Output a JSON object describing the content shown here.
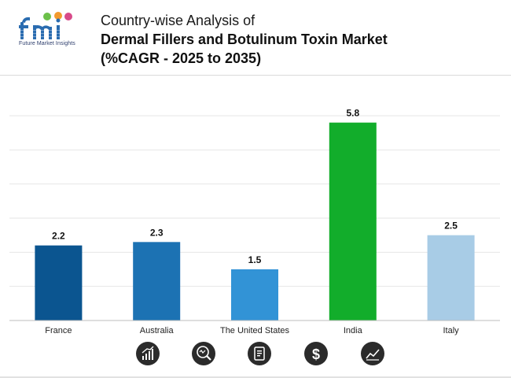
{
  "brand": {
    "logo_text": "fmi",
    "tagline": "Future Market Insights"
  },
  "header": {
    "title_line1": "Country-wise Analysis of",
    "title_line2": "Dermal Fillers and Botulinum Toxin Market",
    "title_line3": "(%CAGR - 2025 to 2035)"
  },
  "chart_data": {
    "type": "bar",
    "title": "Country-wise Analysis of Dermal Fillers and Botulinum Toxin Market (%CAGR - 2025 to 2035)",
    "categories": [
      "France",
      "Australia",
      "The United States",
      "India",
      "Italy"
    ],
    "values": [
      2.2,
      2.3,
      1.5,
      5.8,
      2.5
    ],
    "colors": [
      "#0b5590",
      "#1c72b3",
      "#3293d6",
      "#12ad2b",
      "#a8cce6"
    ],
    "ylim": [
      0,
      6
    ],
    "grid": true,
    "legend": "none",
    "xlabel": "",
    "ylabel": ""
  },
  "footer_icons": [
    "growth-chart-icon",
    "search-analysis-icon",
    "report-document-icon",
    "dollar-icon",
    "trend-line-icon"
  ]
}
